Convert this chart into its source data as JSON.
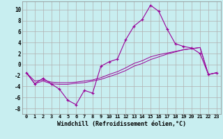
{
  "xlabel": "Windchill (Refroidissement éolien,°C)",
  "background_color": "#c8eef0",
  "grid_color": "#b0b0b0",
  "line_color": "#990099",
  "xlim": [
    -0.5,
    23.5
  ],
  "ylim": [
    -9.0,
    11.5
  ],
  "yticks": [
    -8,
    -6,
    -4,
    -2,
    0,
    2,
    4,
    6,
    8,
    10
  ],
  "xticks": [
    0,
    1,
    2,
    3,
    4,
    5,
    6,
    7,
    8,
    9,
    10,
    11,
    12,
    13,
    14,
    15,
    16,
    17,
    18,
    19,
    20,
    21,
    22,
    23
  ],
  "hours": [
    0,
    1,
    2,
    3,
    4,
    5,
    6,
    7,
    8,
    9,
    10,
    11,
    12,
    13,
    14,
    15,
    16,
    17,
    18,
    19,
    20,
    21,
    22,
    23
  ],
  "windchill": [
    -1.5,
    -3.5,
    -2.5,
    -3.5,
    -4.5,
    -6.5,
    -7.3,
    -4.7,
    -5.2,
    -0.3,
    0.5,
    1.0,
    4.5,
    7.0,
    8.2,
    10.8,
    9.7,
    6.5,
    3.8,
    3.3,
    3.0,
    2.0,
    -1.8,
    -1.5
  ],
  "temp_line1": [
    -1.5,
    -3.0,
    -2.8,
    -3.2,
    -3.3,
    -3.3,
    -3.2,
    -3.0,
    -2.8,
    -2.4,
    -1.8,
    -1.3,
    -0.6,
    0.2,
    0.7,
    1.4,
    1.8,
    2.1,
    2.4,
    2.7,
    2.9,
    3.1,
    -1.8,
    -1.5
  ],
  "temp_line2": [
    -1.5,
    -3.5,
    -3.0,
    -3.5,
    -3.6,
    -3.6,
    -3.4,
    -3.3,
    -3.0,
    -2.7,
    -2.2,
    -1.7,
    -1.1,
    -0.3,
    0.2,
    0.9,
    1.4,
    1.9,
    2.3,
    2.7,
    2.9,
    3.1,
    -1.8,
    -1.5
  ]
}
